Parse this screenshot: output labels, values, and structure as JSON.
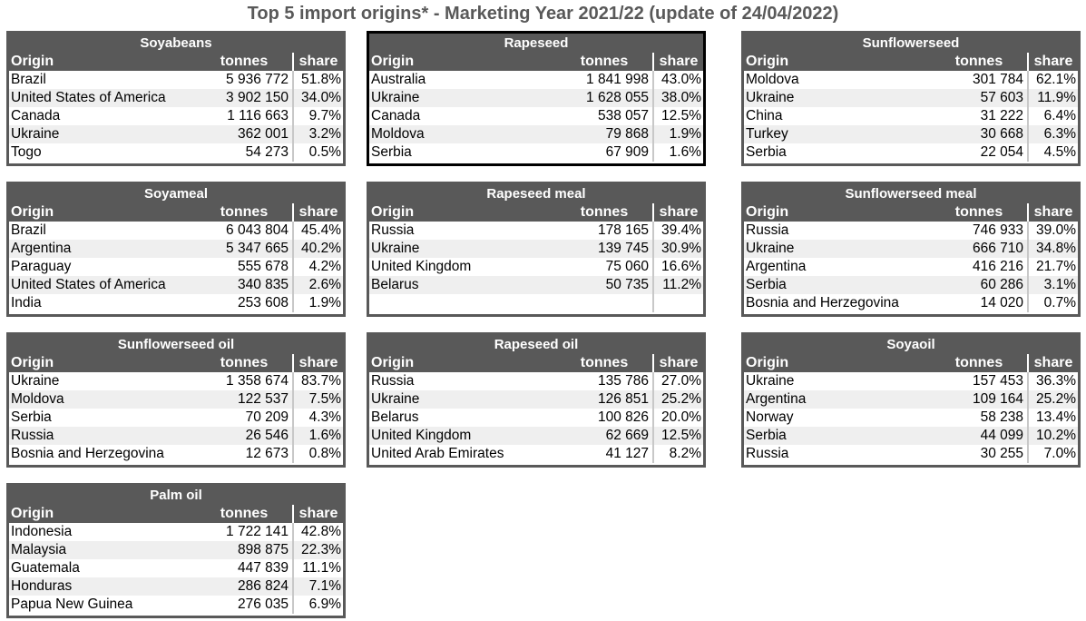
{
  "title": "Top 5 import origins* - Marketing Year 2021/22 (update of 24/04/2022)",
  "headers": {
    "origin": "Origin",
    "tonnes": "tonnes",
    "share": "share"
  },
  "tables": [
    {
      "name": "Soyabeans",
      "rows": [
        {
          "origin": "Brazil",
          "tonnes": "5 936 772",
          "share": "51.8%"
        },
        {
          "origin": "United States of America",
          "tonnes": "3 902 150",
          "share": "34.0%"
        },
        {
          "origin": "Canada",
          "tonnes": "1 116 663",
          "share": "9.7%"
        },
        {
          "origin": "Ukraine",
          "tonnes": "362 001",
          "share": "3.2%"
        },
        {
          "origin": "Togo",
          "tonnes": "54 273",
          "share": "0.5%"
        }
      ]
    },
    {
      "name": "Rapeseed",
      "rows": [
        {
          "origin": "Australia",
          "tonnes": "1 841 998",
          "share": "43.0%"
        },
        {
          "origin": "Ukraine",
          "tonnes": "1 628 055",
          "share": "38.0%"
        },
        {
          "origin": "Canada",
          "tonnes": "538 057",
          "share": "12.5%"
        },
        {
          "origin": "Moldova",
          "tonnes": "79 868",
          "share": "1.9%"
        },
        {
          "origin": "Serbia",
          "tonnes": "67 909",
          "share": "1.6%"
        }
      ]
    },
    {
      "name": "Sunflowerseed",
      "rows": [
        {
          "origin": "Moldova",
          "tonnes": "301 784",
          "share": "62.1%"
        },
        {
          "origin": "Ukraine",
          "tonnes": "57 603",
          "share": "11.9%"
        },
        {
          "origin": "China",
          "tonnes": "31 222",
          "share": "6.4%"
        },
        {
          "origin": "Turkey",
          "tonnes": "30 668",
          "share": "6.3%"
        },
        {
          "origin": "Serbia",
          "tonnes": "22 054",
          "share": "4.5%"
        }
      ]
    },
    {
      "name": "Soyameal",
      "rows": [
        {
          "origin": "Brazil",
          "tonnes": "6 043 804",
          "share": "45.4%"
        },
        {
          "origin": "Argentina",
          "tonnes": "5 347 665",
          "share": "40.2%"
        },
        {
          "origin": "Paraguay",
          "tonnes": "555 678",
          "share": "4.2%"
        },
        {
          "origin": "United States of America",
          "tonnes": "340 835",
          "share": "2.6%"
        },
        {
          "origin": "India",
          "tonnes": "253 608",
          "share": "1.9%"
        }
      ]
    },
    {
      "name": "Rapeseed meal",
      "rows": [
        {
          "origin": "Russia",
          "tonnes": "178 165",
          "share": "39.4%"
        },
        {
          "origin": "Ukraine",
          "tonnes": "139 745",
          "share": "30.9%"
        },
        {
          "origin": "United Kingdom",
          "tonnes": "75 060",
          "share": "16.6%"
        },
        {
          "origin": "Belarus",
          "tonnes": "50 735",
          "share": "11.2%"
        },
        {
          "origin": "",
          "tonnes": "",
          "share": ""
        }
      ]
    },
    {
      "name": "Sunflowerseed meal",
      "rows": [
        {
          "origin": "Russia",
          "tonnes": "746 933",
          "share": "39.0%"
        },
        {
          "origin": "Ukraine",
          "tonnes": "666 710",
          "share": "34.8%"
        },
        {
          "origin": "Argentina",
          "tonnes": "416 216",
          "share": "21.7%"
        },
        {
          "origin": "Serbia",
          "tonnes": "60 286",
          "share": "3.1%"
        },
        {
          "origin": "Bosnia and Herzegovina",
          "tonnes": "14 020",
          "share": "0.7%"
        }
      ]
    },
    {
      "name": "Sunflowerseed oil",
      "rows": [
        {
          "origin": "Ukraine",
          "tonnes": "1 358 674",
          "share": "83.7%"
        },
        {
          "origin": "Moldova",
          "tonnes": "122 537",
          "share": "7.5%"
        },
        {
          "origin": "Serbia",
          "tonnes": "70 209",
          "share": "4.3%"
        },
        {
          "origin": "Russia",
          "tonnes": "26 546",
          "share": "1.6%"
        },
        {
          "origin": "Bosnia and Herzegovina",
          "tonnes": "12 673",
          "share": "0.8%"
        }
      ]
    },
    {
      "name": "Rapeseed oil",
      "rows": [
        {
          "origin": "Russia",
          "tonnes": "135 786",
          "share": "27.0%"
        },
        {
          "origin": "Ukraine",
          "tonnes": "126 851",
          "share": "25.2%"
        },
        {
          "origin": "Belarus",
          "tonnes": "100 826",
          "share": "20.0%"
        },
        {
          "origin": "United Kingdom",
          "tonnes": "62 669",
          "share": "12.5%"
        },
        {
          "origin": "United Arab Emirates",
          "tonnes": "41 127",
          "share": "8.2%"
        }
      ]
    },
    {
      "name": "Soyaoil",
      "rows": [
        {
          "origin": "Ukraine",
          "tonnes": "157 453",
          "share": "36.3%"
        },
        {
          "origin": "Argentina",
          "tonnes": "109 164",
          "share": "25.2%"
        },
        {
          "origin": "Norway",
          "tonnes": "58 238",
          "share": "13.4%"
        },
        {
          "origin": "Serbia",
          "tonnes": "44 099",
          "share": "10.2%"
        },
        {
          "origin": "Russia",
          "tonnes": "30 255",
          "share": "7.0%"
        }
      ]
    },
    {
      "name": "Palm oil",
      "rows": [
        {
          "origin": "Indonesia",
          "tonnes": "1 722 141",
          "share": "42.8%"
        },
        {
          "origin": "Malaysia",
          "tonnes": "898 875",
          "share": "22.3%"
        },
        {
          "origin": "Guatemala",
          "tonnes": "447 839",
          "share": "11.1%"
        },
        {
          "origin": "Honduras",
          "tonnes": "286 824",
          "share": "7.1%"
        },
        {
          "origin": "Papua New Guinea",
          "tonnes": "276 035",
          "share": "6.9%"
        }
      ]
    }
  ]
}
